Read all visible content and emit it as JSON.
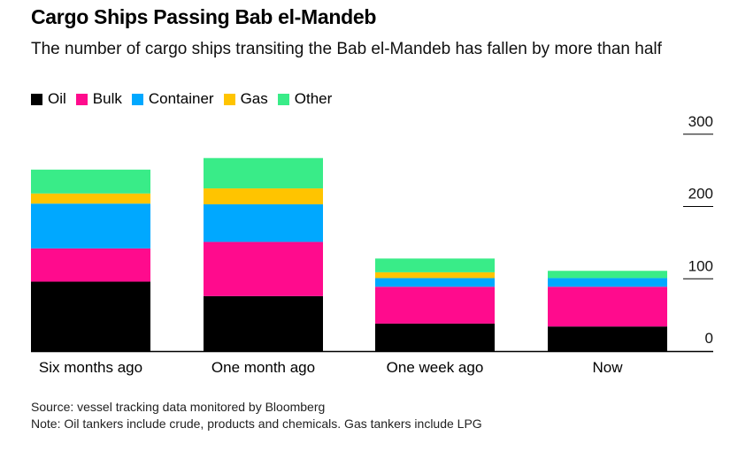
{
  "title": "Cargo Ships Passing Bab el-Mandeb",
  "subtitle": "The number of cargo ships transiting the Bab el-Mandeb has fallen by more than half",
  "source": "Source: vessel tracking data monitored by Bloomberg",
  "note": "Note: Oil tankers include crude, products and chemicals. Gas tankers include LPG",
  "colors": {
    "Oil": "#000000",
    "Bulk": "#ff0b8d",
    "Container": "#00a8ff",
    "Gas": "#ffc400",
    "Other": "#39ec88"
  },
  "chart_data": {
    "type": "bar",
    "stacked": true,
    "categories": [
      "Six months ago",
      "One month ago",
      "One week ago",
      "Now"
    ],
    "series": [
      {
        "name": "Oil",
        "values": [
          96,
          76,
          38,
          34
        ]
      },
      {
        "name": "Bulk",
        "values": [
          46,
          75,
          51,
          55
        ]
      },
      {
        "name": "Container",
        "values": [
          62,
          52,
          12,
          12
        ]
      },
      {
        "name": "Gas",
        "values": [
          14,
          22,
          8,
          0
        ]
      },
      {
        "name": "Other",
        "values": [
          33,
          42,
          19,
          10
        ]
      }
    ],
    "y_ticks": [
      "0",
      "100",
      "200",
      "300"
    ],
    "ylim": [
      0,
      300
    ],
    "y_axis_position": "right",
    "legend": "top-left",
    "grid": false
  }
}
